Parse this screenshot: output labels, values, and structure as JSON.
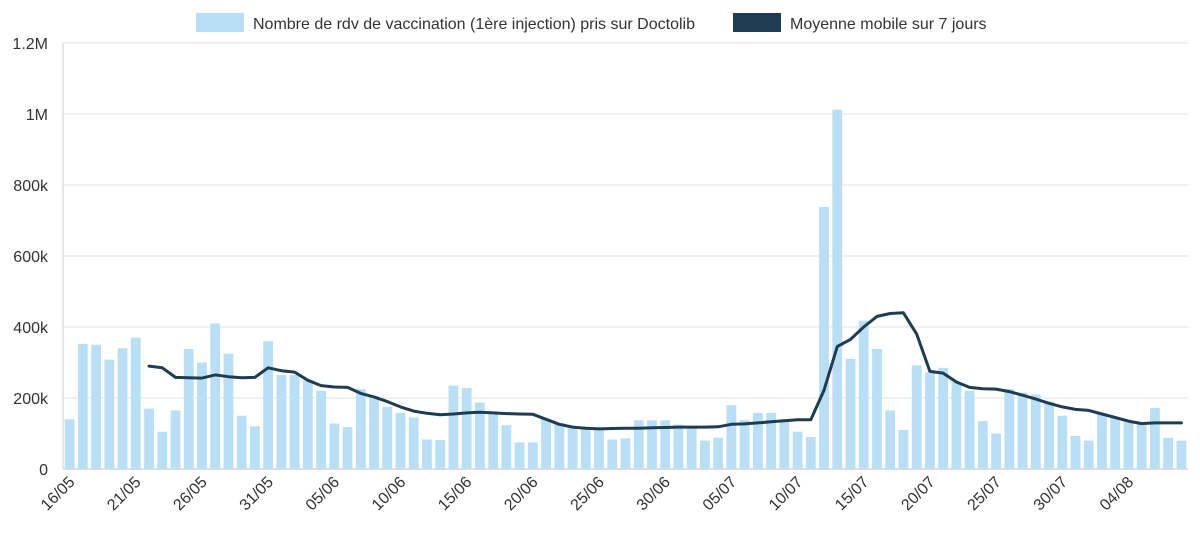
{
  "chart_data": {
    "type": "bar",
    "title": "",
    "xlabel": "",
    "ylabel": "",
    "ylim": [
      0,
      1200000
    ],
    "grid": true,
    "legend_placement": "top-center",
    "y_ticks": [
      {
        "value": 0,
        "label": "0"
      },
      {
        "value": 200000,
        "label": "200k"
      },
      {
        "value": 400000,
        "label": "400k"
      },
      {
        "value": 600000,
        "label": "600k"
      },
      {
        "value": 800000,
        "label": "800k"
      },
      {
        "value": 1000000,
        "label": "1M"
      },
      {
        "value": 1200000,
        "label": "1.2M"
      }
    ],
    "x_tick_labels": [
      {
        "index": 0,
        "label": "16/05"
      },
      {
        "index": 5,
        "label": "21/05"
      },
      {
        "index": 10,
        "label": "26/05"
      },
      {
        "index": 15,
        "label": "31/05"
      },
      {
        "index": 20,
        "label": "05/06"
      },
      {
        "index": 25,
        "label": "10/06"
      },
      {
        "index": 30,
        "label": "15/06"
      },
      {
        "index": 35,
        "label": "20/06"
      },
      {
        "index": 40,
        "label": "25/06"
      },
      {
        "index": 45,
        "label": "30/06"
      },
      {
        "index": 50,
        "label": "05/07"
      },
      {
        "index": 55,
        "label": "10/07"
      },
      {
        "index": 60,
        "label": "15/07"
      },
      {
        "index": 65,
        "label": "20/07"
      },
      {
        "index": 70,
        "label": "25/07"
      },
      {
        "index": 75,
        "label": "30/07"
      },
      {
        "index": 80,
        "label": "04/08"
      }
    ],
    "series": [
      {
        "name": "Nombre de rdv de vaccination (1ère injection) pris sur Doctolib",
        "type": "bar",
        "color": "#b8dff5",
        "values": [
          140000,
          352000,
          350000,
          308000,
          340000,
          370000,
          170000,
          105000,
          165000,
          338000,
          300000,
          410000,
          325000,
          150000,
          120000,
          360000,
          265000,
          265000,
          250000,
          220000,
          128000,
          118000,
          225000,
          205000,
          175000,
          158000,
          145000,
          83000,
          82000,
          235000,
          228000,
          187000,
          160000,
          123000,
          75000,
          75000,
          140000,
          130000,
          118000,
          115000,
          118000,
          83000,
          86000,
          137000,
          137000,
          137000,
          125000,
          120000,
          80000,
          88000,
          180000,
          138000,
          158000,
          158000,
          140000,
          105000,
          90000,
          738000,
          1012000,
          310000,
          418000,
          338000,
          165000,
          110000,
          292000,
          272000,
          285000,
          245000,
          220000,
          135000,
          100000,
          225000,
          215000,
          210000,
          190000,
          150000,
          93000,
          80000,
          155000,
          145000,
          135000,
          130000,
          172000,
          88000,
          80000
        ]
      },
      {
        "name": "Moyenne mobile sur 7 jours",
        "type": "line",
        "color": "#1f3d52",
        "values": [
          null,
          null,
          null,
          null,
          null,
          null,
          290000,
          285000,
          258000,
          257000,
          256000,
          265000,
          260000,
          257000,
          258000,
          285000,
          277000,
          273000,
          250000,
          235000,
          231000,
          230000,
          213000,
          203000,
          190000,
          175000,
          163000,
          157000,
          153000,
          155000,
          158000,
          160000,
          158000,
          156000,
          155000,
          154000,
          140000,
          126000,
          118000,
          115000,
          113000,
          114000,
          115000,
          115000,
          116000,
          117000,
          118000,
          118000,
          118000,
          119000,
          126000,
          127000,
          130000,
          133000,
          136000,
          139000,
          139000,
          222000,
          345000,
          365000,
          400000,
          430000,
          438000,
          440000,
          380000,
          275000,
          270000,
          245000,
          230000,
          226000,
          225000,
          218000,
          208000,
          197000,
          185000,
          175000,
          168000,
          165000,
          155000,
          145000,
          135000,
          128000,
          130000,
          130000,
          130000
        ]
      }
    ]
  }
}
